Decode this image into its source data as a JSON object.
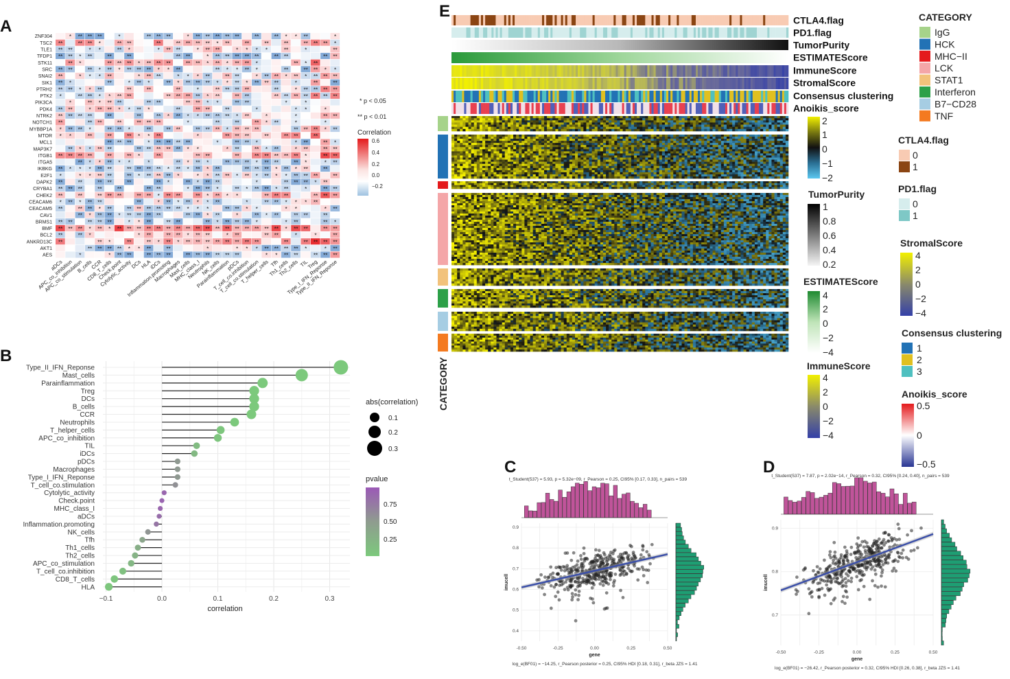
{
  "chart_data": [
    {
      "panel": "A",
      "type": "heatmap",
      "title": "",
      "rows": [
        "ZNF304",
        "TSC2",
        "TLE1",
        "TFDP1",
        "STK11",
        "SRC",
        "SNAI2",
        "SIK1",
        "PTRH2",
        "PTK2",
        "PIK3CA",
        "PDK4",
        "NTRK2",
        "NOTCH1",
        "MYBBP1A",
        "MTOR",
        "MCL1",
        "MAP3K7",
        "ITGB1",
        "ITGA5",
        "IKBKG",
        "E2F1",
        "DAPK2",
        "CRYBA1",
        "CHEK2",
        "CEACAM6",
        "CEACAM5",
        "CAV1",
        "BRMS1",
        "BMF",
        "BCL2",
        "ANKRD13C",
        "AKT1",
        "AES"
      ],
      "columns": [
        "aDCs",
        "APC_co_inhibition",
        "APC_co_stimulation",
        "B_cells",
        "CCR",
        "CD8_T_cells",
        "Check.point",
        "Cytolytic_activity",
        "DCs",
        "HLA",
        "iDCs",
        "Inflammation.promoting",
        "Macrophages",
        "Mast_cells",
        "MHC_class_I",
        "Neutrophils",
        "NK_cells",
        "Parainflammation",
        "pDCs",
        "T_cell_co.inhibition",
        "T_cell_co.stimulation",
        "T_helper_cells",
        "Tfh",
        "Th1_cells",
        "Th2_cells",
        "TIL",
        "Treg",
        "Type_I_IFN_Reponse",
        "Type_II_IFN_Reponse"
      ],
      "legend": {
        "notes": [
          "* p < 0.05",
          "** p < 0.01"
        ],
        "title": "Correlation",
        "ticks": [
          "0.6",
          "0.4",
          "0.2",
          "0.0",
          "−0.2"
        ],
        "range": [
          -0.3,
          0.6
        ]
      }
    },
    {
      "panel": "B",
      "type": "scatter",
      "subtype": "lollipop",
      "xlabel": "correlation",
      "xlim": [
        -0.1,
        0.32
      ],
      "xticks": [
        "−0.1",
        "0.0",
        "0.1",
        "0.2",
        "0.3"
      ],
      "categories": [
        "Type_II_IFN_Reponse",
        "Mast_cells",
        "Parainflammation",
        "Treg",
        "DCs",
        "B_cells",
        "CCR",
        "Neutrophils",
        "T_helper_cells",
        "APC_co_inhibition",
        "TIL",
        "iDCs",
        "pDCs",
        "Macrophages",
        "Type_I_IFN_Reponse",
        "T_cell_co.stimulation",
        "Cytolytic_activity",
        "Check.point",
        "MHC_class_I",
        "aDCs",
        "Inflammation.promoting",
        "NK_cells",
        "Tfh",
        "Th1_cells",
        "Th2_cells",
        "APC_co_stimulation",
        "T_cell_co.inhibition",
        "CD8_T_cells",
        "HLA"
      ],
      "values": [
        0.32,
        0.25,
        0.18,
        0.165,
        0.165,
        0.165,
        0.16,
        0.13,
        0.105,
        0.1,
        0.062,
        0.058,
        0.028,
        0.028,
        0.028,
        0.024,
        0.004,
        0.0,
        -0.003,
        -0.005,
        -0.01,
        -0.025,
        -0.035,
        -0.043,
        -0.048,
        -0.055,
        -0.07,
        -0.085,
        -0.095
      ],
      "pvalues": [
        0.0,
        0.0,
        0.0,
        0.0,
        0.0,
        0.0,
        0.0,
        0.0,
        0.03,
        0.04,
        0.15,
        0.18,
        0.52,
        0.52,
        0.52,
        0.58,
        0.9,
        0.92,
        0.9,
        0.85,
        0.78,
        0.55,
        0.4,
        0.3,
        0.25,
        0.2,
        0.1,
        0.05,
        0.03
      ],
      "size_legend": {
        "title": "abs(correlation)",
        "labels": [
          "0.1",
          "0.2",
          "0.3"
        ]
      },
      "color_legend": {
        "title": "pvalue",
        "labels": [
          "0.75",
          "0.50",
          "0.25"
        ]
      }
    },
    {
      "panel": "C",
      "type": "scatter",
      "subtitle": "t_Student(537) = 5.93, p = 5.32e−09, r_Pearson = 0.25, CI95% [0.17, 0.33], n_pairs = 539",
      "footnote": "log_e(BF01) = −14.25, r_Pearson posterior = 0.25, CI95% HDI [0.18, 0.31], r_beta JZS = 1.41",
      "xlabel": "gene",
      "ylabel": "imucell",
      "xlim": [
        -0.5,
        0.5
      ],
      "ylim": [
        0.35,
        0.92
      ],
      "xticks": [
        "-0.50",
        "-0.25",
        "0.00",
        "0.25",
        "0.50"
      ],
      "yticks": [
        "0.4",
        "0.5",
        "0.6",
        "0.7",
        "0.8",
        "0.9"
      ],
      "fit": {
        "slope": 0.16,
        "intercept": 0.69
      },
      "n": 539
    },
    {
      "panel": "D",
      "type": "scatter",
      "subtitle": "t_Student(537) = 7.87, p = 2.02e−14, r_Pearson = 0.32, CI95% [0.24, 0.40], n_pairs = 539",
      "footnote": "log_e(BF01) = −26.42, r_Pearson posterior = 0.32, CI95% HDI [0.26, 0.38], r_beta JZS = 1.41",
      "xlabel": "gene",
      "ylabel": "imucell",
      "xlim": [
        -0.5,
        0.5
      ],
      "ylim": [
        0.63,
        0.92
      ],
      "xticks": [
        "-0.50",
        "-0.25",
        "0.00",
        "0.25",
        "0.50"
      ],
      "yticks": [
        "0.7",
        "0.8",
        "0.9"
      ],
      "fit": {
        "slope": 0.13,
        "intercept": 0.822
      },
      "n": 539
    },
    {
      "panel": "E",
      "type": "heatmap",
      "annotation_tracks": [
        "CTLA4.flag",
        "PD1.flag",
        "TumorPurity",
        "ESTIMATEScore",
        "ImmuneScore",
        "StromalScore",
        "Consensus clustering",
        "Anoikis_score"
      ],
      "row_group_label": "CATEGORY",
      "category_legend": {
        "title": "CATEGORY",
        "items": [
          "IgG",
          "HCK",
          "MHC−II",
          "LCK",
          "STAT1",
          "Interferon",
          "B7−CD28",
          "TNF"
        ],
        "colors": [
          "#a6d38a",
          "#2272b5",
          "#e41a1c",
          "#f4a6a8",
          "#f2c27b",
          "#2ca048",
          "#a6cde3",
          "#f47a20"
        ]
      },
      "expression_legend": {
        "ticks": [
          "2",
          "1",
          "0",
          "−1",
          "−2"
        ]
      },
      "tumor_purity_legend": {
        "title": "TumorPurity",
        "ticks": [
          "1",
          "0.8",
          "0.6",
          "0.4",
          "0.2"
        ]
      },
      "estimate_legend": {
        "title": "ESTIMATEScore",
        "ticks": [
          "4",
          "2",
          "0",
          "−2",
          "−4"
        ]
      },
      "immune_legend": {
        "title": "ImmuneScore",
        "ticks": [
          "4",
          "2",
          "0",
          "−2",
          "−4"
        ]
      },
      "ctla4_legend": {
        "title": "CTLA4.flag",
        "items": [
          "0",
          "1"
        ],
        "colors": [
          "#f8cbb3",
          "#8b4513"
        ]
      },
      "pd1_legend": {
        "title": "PD1.flag",
        "items": [
          "0",
          "1"
        ],
        "colors": [
          "#d6eded",
          "#7ec8c6"
        ]
      },
      "stromal_legend": {
        "title": "StromalScore",
        "ticks": [
          "4",
          "2",
          "0",
          "−2",
          "−4"
        ]
      },
      "consensus_legend": {
        "title": "Consensus clustering",
        "items": [
          "1",
          "2",
          "3"
        ],
        "colors": [
          "#2272b5",
          "#e0c020",
          "#4fc0c0"
        ]
      },
      "anoikis_legend": {
        "title": "Anoikis_score",
        "ticks": [
          "0.5",
          "0",
          "−0.5"
        ]
      }
    }
  ]
}
